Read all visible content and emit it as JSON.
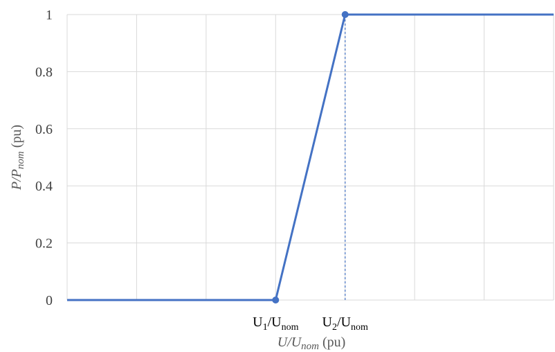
{
  "chart_data": {
    "type": "line",
    "title": "",
    "xlabel": {
      "main": "U/U",
      "sub": "nom",
      "unit": " (pu)"
    },
    "ylabel": {
      "main": "P/P",
      "sub": "nom",
      "unit": " (pu)"
    },
    "xlim": [
      0,
      7
    ],
    "ylim": [
      0,
      1
    ],
    "yticks": [
      "0",
      "0.2",
      "0.4",
      "0.6",
      "0.8",
      "1"
    ],
    "ytick_values": [
      0,
      0.2,
      0.4,
      0.6,
      0.8,
      1
    ],
    "xtick_labels": [
      {
        "x": 3,
        "main": "U",
        "index": "1",
        "sep": "/U",
        "sub": "nom"
      },
      {
        "x": 4,
        "main": "U",
        "index": "2",
        "sep": "/U",
        "sub": "nom"
      }
    ],
    "grid": true,
    "legend": "none",
    "series": [
      {
        "x": [
          0,
          3,
          4,
          7
        ],
        "y": [
          0,
          0,
          1,
          1
        ],
        "color": "#4472c4",
        "markers_at": [
          3,
          4
        ]
      }
    ],
    "reference_line": {
      "x": 4,
      "y_from": 0,
      "y_to": 1,
      "style": "dashed",
      "color": "#4472c4"
    }
  }
}
